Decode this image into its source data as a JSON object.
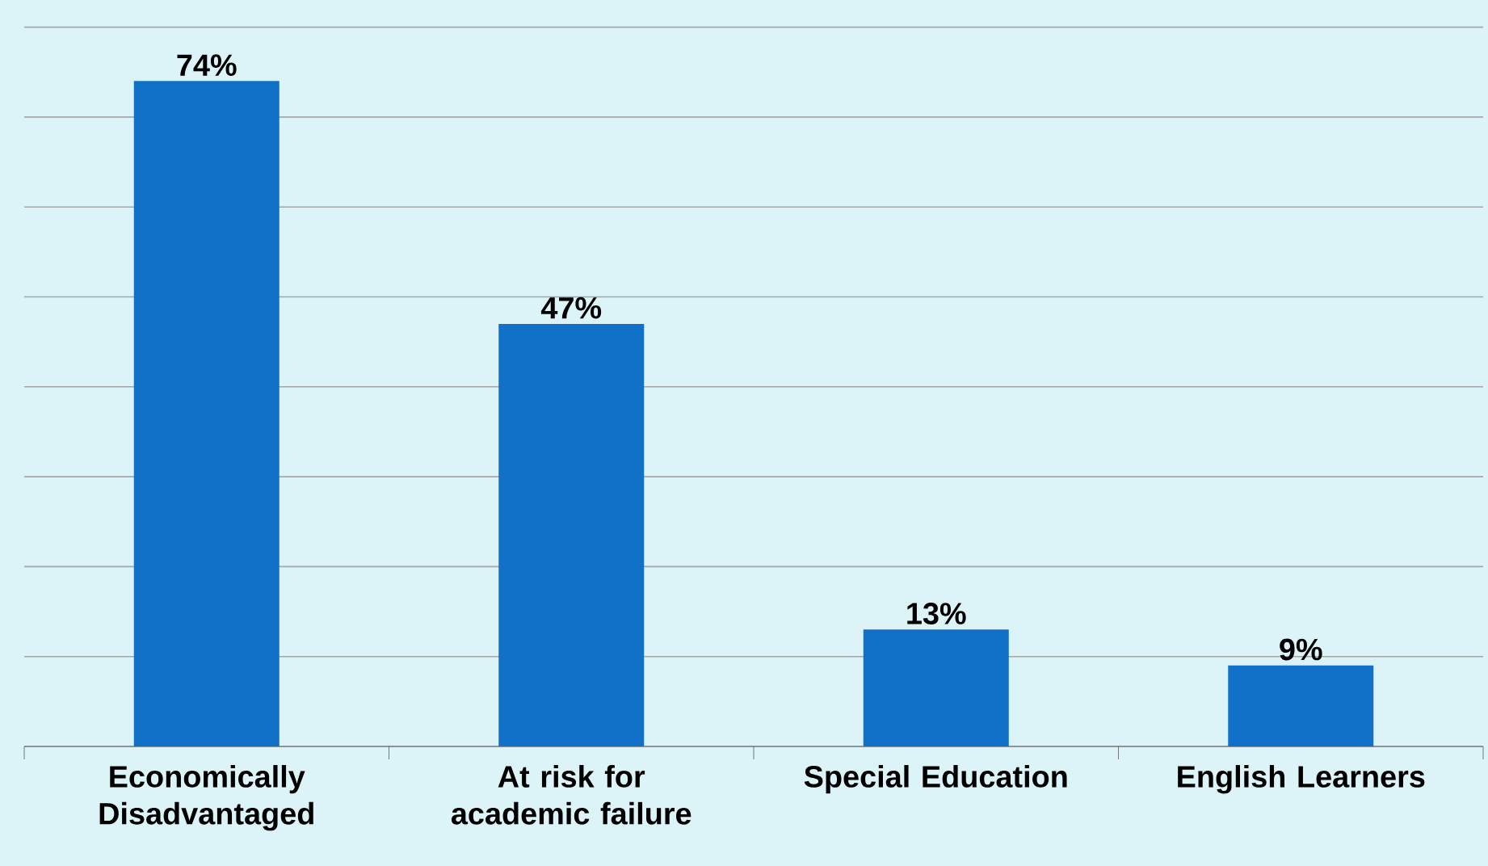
{
  "chart_data": {
    "type": "bar",
    "categories": [
      "Economically Disadvantaged",
      "At risk for academic failure",
      "Special Education",
      "English Learners"
    ],
    "values": [
      74,
      47,
      13,
      9
    ],
    "value_labels": [
      "74%",
      "47%",
      "13%",
      "9%"
    ],
    "color": "#1170c8",
    "grid": "y",
    "tick_labels": "x"
  }
}
